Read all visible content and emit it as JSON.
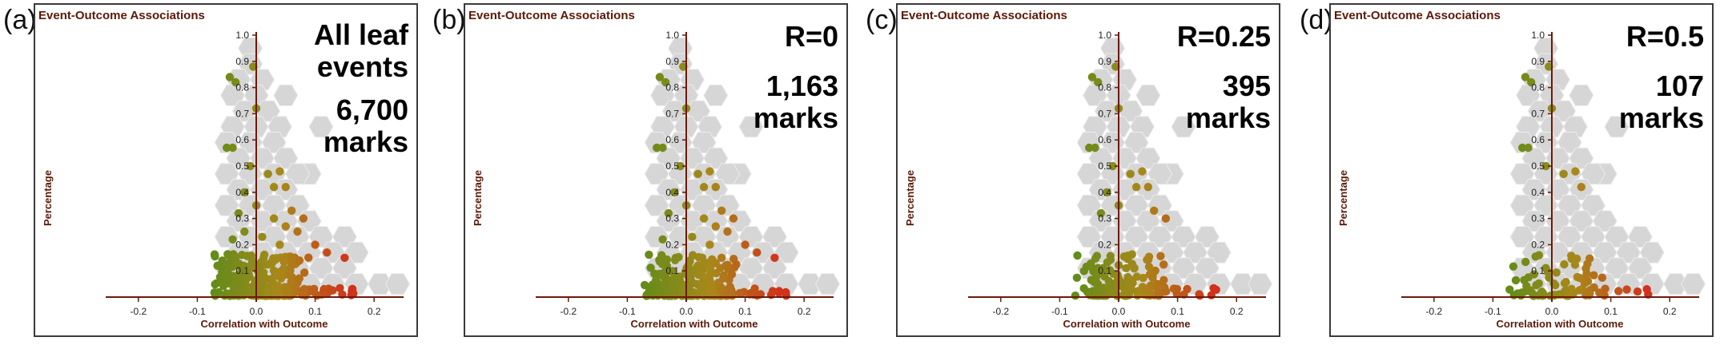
{
  "figure": {
    "colors": {
      "hex": "#d6d6d6",
      "axis": "#6b1a0a",
      "label": "#5a1a08",
      "low": "#5e8c1a",
      "mid": "#a8881a",
      "high": "#d2311a"
    }
  },
  "chart_data": [
    {
      "type": "scatter",
      "letter": "(a)",
      "title": "Event-Outcome Associations",
      "xlabel": "Correlation with Outcome",
      "ylabel": "Percentage",
      "xlim": [
        -0.25,
        0.25
      ],
      "ylim": [
        0,
        1.0
      ],
      "xticks": [
        "-0.2",
        "-0.1",
        "0.0",
        "0.1",
        "0.2"
      ],
      "yticks": [
        "0.1",
        "0.2",
        "0.3",
        "0.4",
        "0.5",
        "0.6",
        "0.7",
        "0.8",
        "0.9",
        "1.0"
      ],
      "annotation_lines": [
        "All leaf",
        "events",
        "6,700",
        "marks"
      ],
      "dot_density": 1.0
    },
    {
      "type": "scatter",
      "letter": "(b)",
      "title": "Event-Outcome Associations",
      "xlabel": "Correlation with Outcome",
      "ylabel": "Percentage",
      "xlim": [
        -0.25,
        0.25
      ],
      "ylim": [
        0,
        1.0
      ],
      "xticks": [
        "-0.2",
        "-0.1",
        "0.0",
        "0.1",
        "0.2"
      ],
      "yticks": [
        "0.1",
        "0.2",
        "0.3",
        "0.4",
        "0.5",
        "0.6",
        "0.7",
        "0.8",
        "0.9",
        "1.0"
      ],
      "annotation_lines": [
        "R=0",
        "1,163",
        "marks"
      ],
      "dot_density": 0.85
    },
    {
      "type": "scatter",
      "letter": "(c)",
      "title": "Event-Outcome Associations",
      "xlabel": "Correlation with Outcome",
      "ylabel": "Percentage",
      "xlim": [
        -0.25,
        0.25
      ],
      "ylim": [
        0,
        1.0
      ],
      "xticks": [
        "-0.2",
        "-0.1",
        "0.0",
        "0.1",
        "0.2"
      ],
      "yticks": [
        "0.1",
        "0.2",
        "0.3",
        "0.4",
        "0.5",
        "0.6",
        "0.7",
        "0.8",
        "0.9",
        "1.0"
      ],
      "annotation_lines": [
        "R=0.25",
        "395",
        "marks"
      ],
      "dot_density": 0.5
    },
    {
      "type": "scatter",
      "letter": "(d)",
      "title": "Event-Outcome Associations",
      "xlabel": "Correlation with Outcome",
      "ylabel": "Percentage",
      "xlim": [
        -0.25,
        0.25
      ],
      "ylim": [
        0,
        1.0
      ],
      "xticks": [
        "-0.2",
        "-0.1",
        "0.0",
        "0.1",
        "0.2"
      ],
      "yticks": [
        "0.1",
        "0.2",
        "0.3",
        "0.4",
        "0.5",
        "0.6",
        "0.7",
        "0.8",
        "0.9",
        "1.0"
      ],
      "annotation_lines": [
        "R=0.5",
        "107",
        "marks"
      ],
      "dot_density": 0.28
    }
  ]
}
